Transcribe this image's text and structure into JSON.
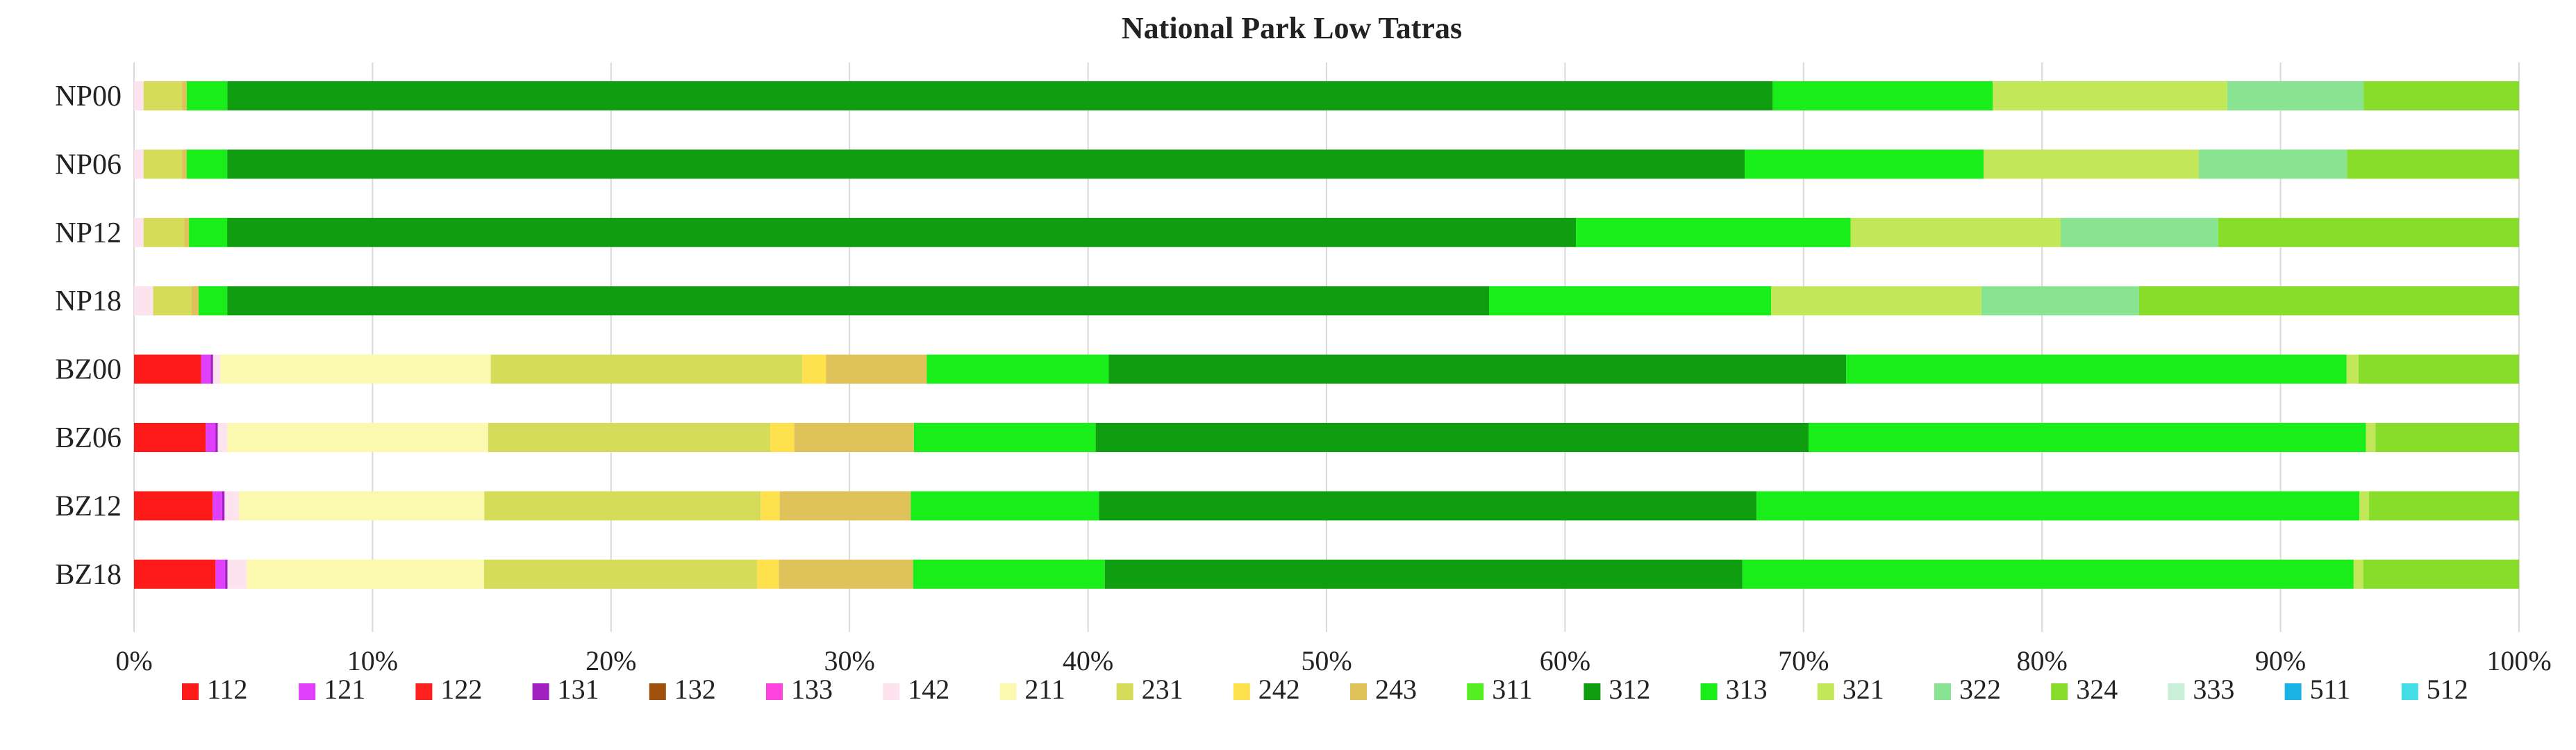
{
  "chart_data": {
    "type": "bar",
    "orientation": "horizontal",
    "stacked": true,
    "normalized": true,
    "title": "National Park Low Tatras",
    "xlabel": "",
    "ylabel": "",
    "xlim": [
      0,
      100
    ],
    "x_ticks": [
      "0%",
      "10%",
      "20%",
      "30%",
      "40%",
      "50%",
      "60%",
      "70%",
      "80%",
      "90%",
      "100%"
    ],
    "grid": true,
    "legend_position": "bottom",
    "categories": [
      "NP00",
      "NP06",
      "NP12",
      "NP18",
      "BZ00",
      "BZ06",
      "BZ12",
      "BZ18"
    ],
    "series": [
      {
        "name": "112",
        "color": "#ff1a1a",
        "values": [
          0,
          0,
          0,
          0,
          2.8,
          3.0,
          3.3,
          3.4
        ]
      },
      {
        "name": "121",
        "color": "#e040fb",
        "values": [
          0,
          0,
          0,
          0,
          0.4,
          0.4,
          0.4,
          0.4
        ]
      },
      {
        "name": "122",
        "color": "#ff2020",
        "values": [
          0,
          0,
          0,
          0,
          0,
          0,
          0,
          0
        ]
      },
      {
        "name": "131",
        "color": "#a020c0",
        "values": [
          0,
          0,
          0,
          0,
          0.1,
          0.1,
          0.1,
          0.1
        ]
      },
      {
        "name": "132",
        "color": "#a0520d",
        "values": [
          0,
          0,
          0,
          0,
          0,
          0,
          0,
          0
        ]
      },
      {
        "name": "133",
        "color": "#ff44dd",
        "values": [
          0,
          0,
          0,
          0,
          0,
          0,
          0,
          0
        ]
      },
      {
        "name": "142",
        "color": "#fde3ee",
        "values": [
          0.4,
          0.4,
          0.4,
          0.8,
          0.3,
          0.4,
          0.6,
          0.8
        ]
      },
      {
        "name": "211",
        "color": "#fbf9b0",
        "values": [
          0,
          0,
          0,
          0,
          11.3,
          10.9,
          10.3,
          9.9
        ]
      },
      {
        "name": "231",
        "color": "#d4dc5a",
        "values": [
          1.6,
          1.6,
          1.7,
          1.6,
          13.0,
          11.8,
          11.6,
          11.4
        ]
      },
      {
        "name": "242",
        "color": "#ffe14d",
        "values": [
          0,
          0,
          0,
          0,
          1.0,
          1.0,
          0.8,
          0.9
        ]
      },
      {
        "name": "243",
        "color": "#e0c25a",
        "values": [
          0.2,
          0.2,
          0.2,
          0.3,
          4.2,
          5.0,
          5.5,
          5.6
        ]
      },
      {
        "name": "311",
        "color": "#55ee22",
        "values": [
          0,
          0,
          0,
          0,
          0,
          0,
          0,
          0
        ]
      },
      {
        "name": "312",
        "color": "#0f9e0f",
        "values": [
          64.6,
          63.5,
          56.5,
          52.8,
          30.8,
          29.8,
          27.6,
          26.6
        ]
      },
      {
        "name": "313",
        "color": "#1aee1a",
        "values": [
          9.2,
          10.0,
          11.5,
          11.8,
          20.9,
          23.3,
          25.3,
          25.5
        ]
      },
      {
        "name": "321",
        "color": "#c2e85a",
        "values": [
          9.8,
          9.0,
          8.8,
          8.8,
          0.5,
          0.4,
          0.4,
          0.4
        ]
      },
      {
        "name": "322",
        "color": "#88e490",
        "values": [
          5.7,
          6.2,
          6.6,
          6.6,
          0,
          0,
          0,
          0
        ]
      },
      {
        "name": "324",
        "color": "#88dc2a",
        "values": [
          6.5,
          7.2,
          12.6,
          15.9,
          6.7,
          6.0,
          6.3,
          6.5
        ]
      },
      {
        "name": "333",
        "color": "#c8f0d8",
        "values": [
          0,
          0,
          0,
          0,
          0,
          0,
          0,
          0
        ]
      },
      {
        "name": "511",
        "color": "#1ab3e6",
        "values": [
          0,
          0,
          0,
          0,
          0,
          0,
          0,
          0
        ]
      },
      {
        "name": "512",
        "color": "#44dde6",
        "values": [
          0,
          0,
          0,
          0,
          0,
          0,
          0,
          0
        ]
      }
    ],
    "np_left_segment": {
      "name": "313",
      "color": "#1aee1a",
      "values": [
        1.7,
        1.7,
        1.6,
        1.2,
        0,
        0,
        0,
        0
      ]
    },
    "bz_left_segment": {
      "name": "313",
      "color": "#1aee1a",
      "values": [
        0,
        0,
        0,
        0,
        7.6,
        7.6,
        7.9,
        8.0
      ]
    }
  }
}
